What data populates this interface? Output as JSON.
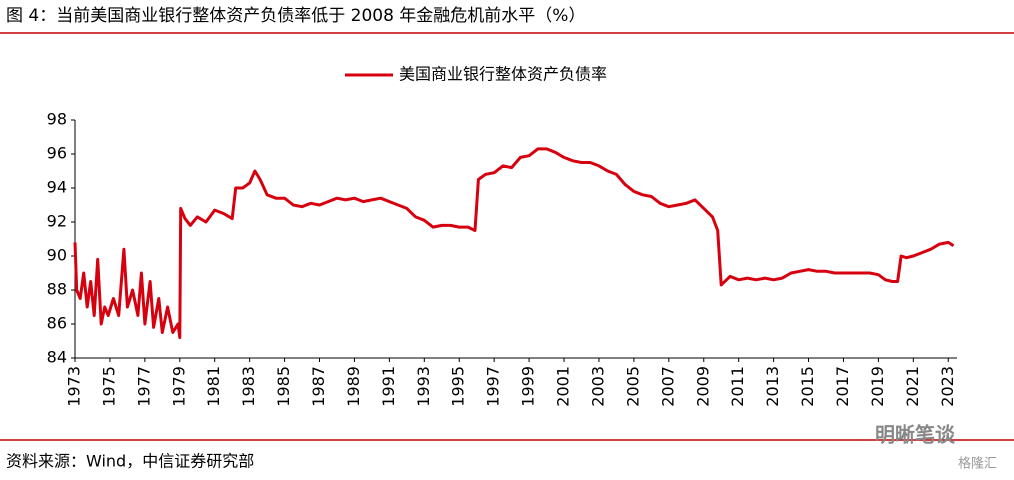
{
  "chart_data": {
    "type": "line",
    "title": "图 4：当前美国商业银行整体资产负债率低于 2008 年金融危机前水平（%）",
    "source": "资料来源：Wind，中信证券研究部",
    "watermarks": [
      "明晰笔谈",
      "格隆汇"
    ],
    "legend": "top",
    "xlim": [
      1973,
      2023.5
    ],
    "xticks": [
      1973,
      1975,
      1977,
      1979,
      1981,
      1983,
      1985,
      1987,
      1989,
      1991,
      1993,
      1995,
      1997,
      1999,
      2001,
      2003,
      2005,
      2007,
      2009,
      2011,
      2013,
      2015,
      2017,
      2019,
      2021,
      2023
    ],
    "ylim": [
      84,
      98
    ],
    "yticks": [
      84,
      86,
      88,
      90,
      92,
      94,
      96,
      98
    ],
    "x": [
      1973.0,
      1973.1,
      1973.3,
      1973.5,
      1973.7,
      1973.9,
      1974.1,
      1974.3,
      1974.5,
      1974.7,
      1974.9,
      1975.2,
      1975.5,
      1975.8,
      1976.0,
      1976.3,
      1976.6,
      1976.8,
      1977.0,
      1977.3,
      1977.5,
      1977.8,
      1978.0,
      1978.3,
      1978.6,
      1978.9,
      1979.0,
      1979.05,
      1979.3,
      1979.6,
      1980.0,
      1980.5,
      1981.0,
      1981.5,
      1982.0,
      1982.2,
      1982.6,
      1983.0,
      1983.3,
      1983.6,
      1984.0,
      1984.5,
      1985.0,
      1985.5,
      1986.0,
      1986.5,
      1987.0,
      1987.5,
      1988.0,
      1988.5,
      1989.0,
      1989.5,
      1990.0,
      1990.5,
      1991.0,
      1991.5,
      1992.0,
      1992.5,
      1993.0,
      1993.5,
      1994.0,
      1994.5,
      1995.0,
      1995.5,
      1995.9,
      1996.1,
      1996.5,
      1997.0,
      1997.5,
      1998.0,
      1998.5,
      1999.0,
      1999.5,
      2000.0,
      2000.5,
      2001.0,
      2001.5,
      2002.0,
      2002.5,
      2003.0,
      2003.5,
      2004.0,
      2004.5,
      2005.0,
      2005.5,
      2006.0,
      2006.5,
      2007.0,
      2007.5,
      2008.0,
      2008.5,
      2009.0,
      2009.5,
      2009.8,
      2010.0,
      2010.5,
      2011.0,
      2011.5,
      2012.0,
      2012.5,
      2013.0,
      2013.5,
      2014.0,
      2014.5,
      2015.0,
      2015.5,
      2016.0,
      2016.5,
      2017.0,
      2017.5,
      2018.0,
      2018.5,
      2019.0,
      2019.4,
      2019.8,
      2020.1,
      2020.3,
      2020.6,
      2021.0,
      2021.5,
      2022.0,
      2022.5,
      2023.0,
      2023.3
    ],
    "series": [
      {
        "name": "美国商业银行整体资产负债率",
        "color": "#d7000f",
        "values": [
          90.8,
          88,
          87.5,
          89,
          87,
          88.5,
          86.5,
          89.8,
          86,
          87,
          86.5,
          87.5,
          86.5,
          90.4,
          87,
          88,
          86.5,
          89,
          86,
          88.5,
          85.8,
          87.5,
          85.5,
          87,
          85.5,
          86,
          85.2,
          92.8,
          92.2,
          91.8,
          92.3,
          92.0,
          92.7,
          92.5,
          92.2,
          94.0,
          94.0,
          94.3,
          95.0,
          94.5,
          93.6,
          93.4,
          93.4,
          93.0,
          92.9,
          93.1,
          93.0,
          93.2,
          93.4,
          93.3,
          93.4,
          93.2,
          93.3,
          93.4,
          93.2,
          93.0,
          92.8,
          92.3,
          92.1,
          91.7,
          91.8,
          91.8,
          91.7,
          91.7,
          91.5,
          94.5,
          94.8,
          94.9,
          95.3,
          95.2,
          95.8,
          95.9,
          96.3,
          96.3,
          96.1,
          95.8,
          95.6,
          95.5,
          95.5,
          95.3,
          95.0,
          94.8,
          94.2,
          93.8,
          93.6,
          93.5,
          93.1,
          92.9,
          93.0,
          93.1,
          93.3,
          92.8,
          92.3,
          91.5,
          88.3,
          88.8,
          88.6,
          88.7,
          88.6,
          88.7,
          88.6,
          88.7,
          89.0,
          89.1,
          89.2,
          89.1,
          89.1,
          89.0,
          89.0,
          89.0,
          89.0,
          89.0,
          88.9,
          88.6,
          88.5,
          88.5,
          90.0,
          89.9,
          90.0,
          90.2,
          90.4,
          90.7,
          90.8,
          90.6
        ]
      }
    ]
  }
}
